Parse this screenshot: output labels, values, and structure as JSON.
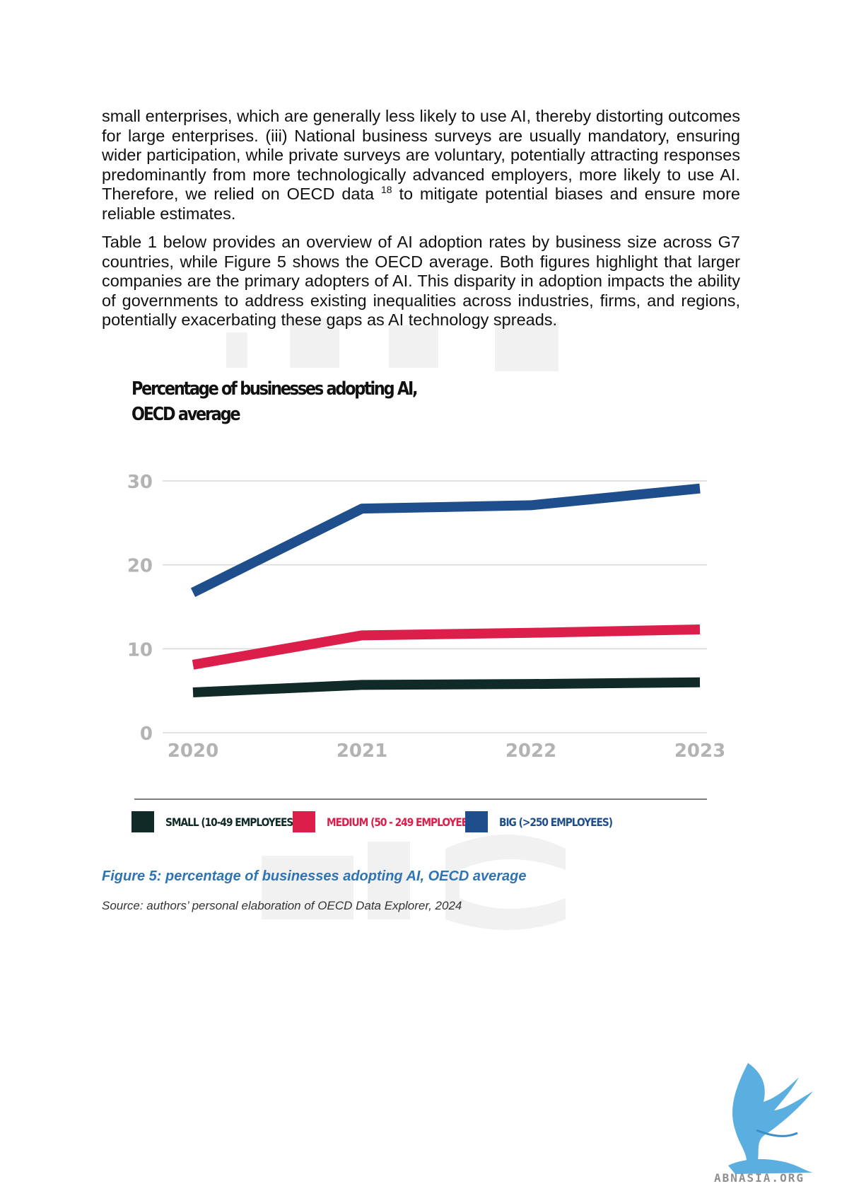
{
  "paragraphs": {
    "p1_before_sup": "small enterprises, which are generally less likely to use AI, thereby distorting outcomes for large enterprises. (iii) National business surveys are usually mandatory, ensuring wider participation, while private surveys are voluntary, potentially attracting responses predominantly from more technologically advanced employers, more likely to use AI. Therefore, we relied on OECD data ",
    "p1_sup": "18",
    "p1_after_sup": " to mitigate potential biases and ensure more reliable estimates.",
    "p2": "Table 1 below provides an overview of AI adoption rates by business size across G7 countries, while Figure 5 shows the OECD average. Both figures highlight that larger companies are the primary adopters of AI. This disparity in adoption impacts the ability of governments to address existing inequalities across industries, firms, and regions, potentially exacerbating these gaps as AI technology spreads."
  },
  "chart_data": {
    "type": "line",
    "title_line1": "Percentage of businesses adopting AI,",
    "title_line2": "OECD average",
    "x": [
      "2020",
      "2021",
      "2022",
      "2023"
    ],
    "y_ticks": [
      0,
      10,
      20,
      30
    ],
    "ylim": [
      0,
      30
    ],
    "grid": true,
    "legend_position": "bottom",
    "series": [
      {
        "name": "SMALL (10-49 EMPLOYEES)",
        "color": "#0f2a27",
        "values": [
          4.8,
          5.7,
          5.8,
          6.0
        ]
      },
      {
        "name": "MEDIUM (50 - 249 EMPLOYEES)",
        "color": "#dc1f4a",
        "values": [
          8.1,
          11.6,
          11.9,
          12.3
        ]
      },
      {
        "name": "BIG (>250 EMPLOYEES)",
        "color": "#1f4e8c",
        "values": [
          16.7,
          26.7,
          27.1,
          29.1
        ]
      }
    ]
  },
  "caption": "Figure 5: percentage of businesses adopting AI, OECD average",
  "source": "Source: authors’ personal elaboration of OECD Data Explorer, 2024",
  "logo": {
    "text": "ABNASIA.ORG",
    "color": "#5aaee0",
    "icon": "griffin-logo-icon"
  },
  "colors": {
    "caption": "#2e74b5",
    "axis": "#b3b3b3",
    "grid": "#d9d9d9"
  }
}
